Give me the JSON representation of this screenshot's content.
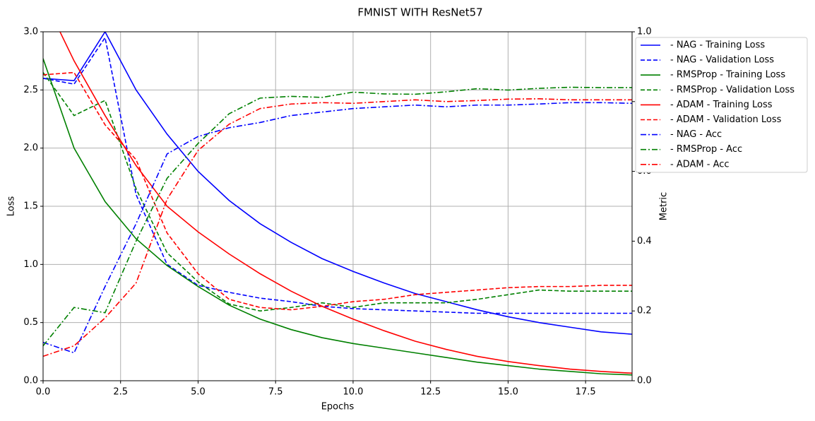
{
  "chart_data": {
    "type": "line",
    "title": "FMNIST WITH ResNet57",
    "x_label": "Epochs",
    "y_label": "Loss",
    "y2_label": "Metric",
    "x": [
      0,
      1,
      2,
      3,
      4,
      5,
      6,
      7,
      8,
      9,
      10,
      11,
      12,
      13,
      14,
      15,
      16,
      17,
      18,
      19
    ],
    "xlim": [
      0,
      19
    ],
    "xticks": [
      {
        "value": 0,
        "label": "0.0"
      },
      {
        "value": 2.5,
        "label": "2.5"
      },
      {
        "value": 5,
        "label": "5.0"
      },
      {
        "value": 7.5,
        "label": "7.5"
      },
      {
        "value": 10,
        "label": "10.0"
      },
      {
        "value": 12.5,
        "label": "12.5"
      },
      {
        "value": 15,
        "label": "15.0"
      },
      {
        "value": 17.5,
        "label": "17.5"
      }
    ],
    "ylim": [
      0,
      3
    ],
    "yticks": [
      {
        "value": 0,
        "label": "0.0"
      },
      {
        "value": 0.5,
        "label": "0.5"
      },
      {
        "value": 1,
        "label": "1.0"
      },
      {
        "value": 1.5,
        "label": "1.5"
      },
      {
        "value": 2,
        "label": "2.0"
      },
      {
        "value": 2.5,
        "label": "2.5"
      },
      {
        "value": 3,
        "label": "3.0"
      }
    ],
    "y2lim": [
      0,
      1
    ],
    "y2ticks": [
      {
        "value": 0,
        "label": "0.0"
      },
      0.2,
      0.4,
      0.6,
      0.8,
      {
        "value": 1,
        "label": "1.0"
      }
    ],
    "grid": true,
    "legend": "outside upper right",
    "series": [
      {
        "name": "- NAG - Training Loss",
        "color": "#0000ff",
        "dash": "solid",
        "values": [
          2.6,
          2.58,
          3.0,
          2.5,
          2.12,
          1.8,
          1.55,
          1.35,
          1.19,
          1.05,
          0.94,
          0.84,
          0.75,
          0.68,
          0.61,
          0.55,
          0.5,
          0.46,
          0.42,
          0.4
        ]
      },
      {
        "name": "- NAG - Validation Loss",
        "color": "#0000ff",
        "dash": "dashed",
        "values": [
          2.6,
          2.55,
          2.95,
          1.6,
          1.0,
          0.82,
          0.76,
          0.71,
          0.68,
          0.64,
          0.62,
          0.61,
          0.6,
          0.59,
          0.58,
          0.58,
          0.58,
          0.58,
          0.58,
          0.58
        ]
      },
      {
        "name": "- RMSProp - Training Loss",
        "color": "#008000",
        "dash": "solid",
        "values": [
          2.77,
          2.0,
          1.54,
          1.22,
          0.99,
          0.81,
          0.65,
          0.53,
          0.44,
          0.37,
          0.32,
          0.28,
          0.24,
          0.2,
          0.16,
          0.13,
          0.1,
          0.08,
          0.06,
          0.05
        ]
      },
      {
        "name": "- RMSProp - Validation Loss",
        "color": "#008000",
        "dash": "dashed",
        "values": [
          2.65,
          2.28,
          2.41,
          1.65,
          1.1,
          0.85,
          0.66,
          0.6,
          0.63,
          0.67,
          0.63,
          0.67,
          0.67,
          0.67,
          0.7,
          0.74,
          0.78,
          0.77,
          0.77,
          0.77
        ]
      },
      {
        "name": "- ADAM - Training Loss",
        "color": "#ff0000",
        "dash": "solid",
        "values": [
          3.3,
          2.75,
          2.28,
          1.85,
          1.5,
          1.28,
          1.09,
          0.92,
          0.77,
          0.64,
          0.53,
          0.43,
          0.34,
          0.27,
          0.21,
          0.165,
          0.13,
          0.1,
          0.08,
          0.065
        ]
      },
      {
        "name": "- ADAM - Validation Loss",
        "color": "#ff0000",
        "dash": "dashed",
        "values": [
          2.63,
          2.65,
          2.2,
          1.9,
          1.27,
          0.92,
          0.7,
          0.63,
          0.61,
          0.64,
          0.68,
          0.7,
          0.74,
          0.76,
          0.78,
          0.8,
          0.81,
          0.81,
          0.82,
          0.82
        ]
      },
      {
        "name": "- NAG - Acc",
        "color": "#0000ff",
        "dash": "dashdot",
        "axis": "y2",
        "values": [
          0.11,
          0.08,
          0.27,
          0.45,
          0.65,
          0.7,
          0.725,
          0.74,
          0.76,
          0.77,
          0.78,
          0.785,
          0.79,
          0.785,
          0.79,
          0.79,
          0.793,
          0.797,
          0.797,
          0.795
        ]
      },
      {
        "name": "- RMSProp - Acc",
        "color": "#008000",
        "dash": "dashdot",
        "axis": "y2",
        "values": [
          0.1,
          0.21,
          0.195,
          0.4,
          0.58,
          0.68,
          0.765,
          0.81,
          0.815,
          0.812,
          0.827,
          0.822,
          0.821,
          0.828,
          0.837,
          0.833,
          0.838,
          0.841,
          0.84,
          0.84
        ]
      },
      {
        "name": "- ADAM - Acc",
        "color": "#ff0000",
        "dash": "dashdot",
        "axis": "y2",
        "values": [
          0.07,
          0.1,
          0.18,
          0.28,
          0.52,
          0.66,
          0.735,
          0.78,
          0.793,
          0.797,
          0.795,
          0.8,
          0.805,
          0.8,
          0.803,
          0.807,
          0.808,
          0.805,
          0.805,
          0.805
        ]
      }
    ]
  }
}
